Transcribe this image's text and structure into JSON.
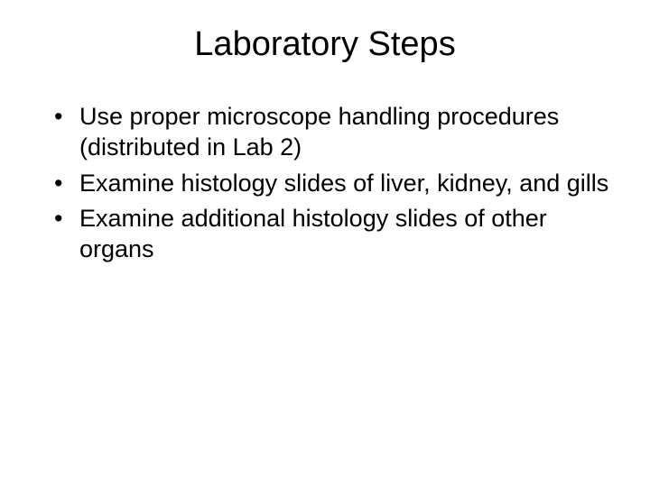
{
  "slide": {
    "title": "Laboratory Steps",
    "bullets": [
      "Use proper microscope handling procedures (distributed in Lab 2)",
      "Examine histology slides of liver, kidney, and gills",
      "Examine additional histology slides of other organs"
    ],
    "background_color": "#ffffff",
    "text_color": "#000000",
    "title_fontsize": 38,
    "body_fontsize": 27,
    "font_family": "Arial"
  }
}
